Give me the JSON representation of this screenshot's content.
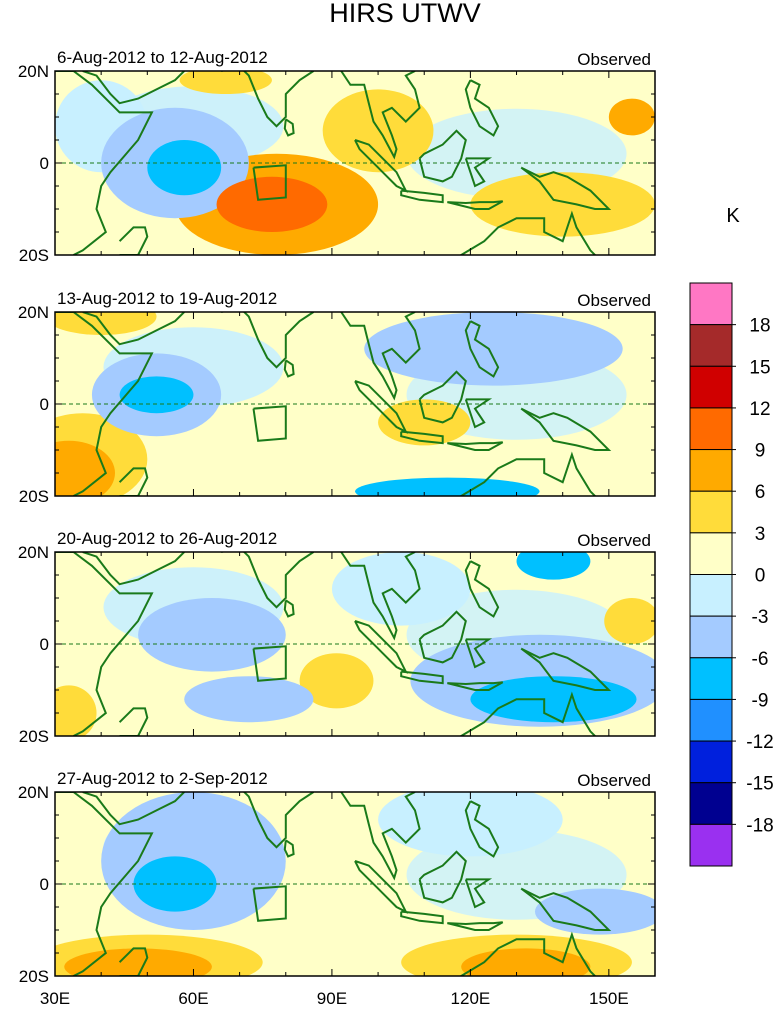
{
  "chart_data": {
    "type": "heatmap",
    "title": "HIRS UTWV",
    "unit_label": "K",
    "x_ticks": [
      "30E",
      "60E",
      "90E",
      "120E",
      "150E"
    ],
    "x_range": [
      30,
      160
    ],
    "y_ticks": [
      "20N",
      "0",
      "20S"
    ],
    "y_range": [
      -20,
      20
    ],
    "colorbar": {
      "labels": [
        "18",
        "15",
        "12",
        "9",
        "6",
        "3",
        "0",
        "-3",
        "-6",
        "-9",
        "-12",
        "-15",
        "-18"
      ],
      "colors": [
        "#ff77c4",
        "#a52a2a",
        "#d00000",
        "#ff6a00",
        "#ffaa00",
        "#ffdc3a",
        "#ffffc8",
        "#c8f0ff",
        "#a4cbff",
        "#00c0ff",
        "#2090ff",
        "#0020dd",
        "#000090",
        "#9a30f0"
      ]
    },
    "panels": [
      {
        "period": "6-Aug-2012 to 12-Aug-2012",
        "label": "Observed",
        "blobs": [
          {
            "lon": 58,
            "lat": -1,
            "rx": 8,
            "ry": 6,
            "value": -9
          },
          {
            "lon": 56,
            "lat": 0,
            "rx": 16,
            "ry": 12,
            "value": -6
          },
          {
            "lon": 78,
            "lat": -9,
            "rx": 22,
            "ry": 11,
            "value": 6
          },
          {
            "lon": 77,
            "lat": -9,
            "rx": 12,
            "ry": 6,
            "value": 9
          },
          {
            "lon": 100,
            "lat": 7,
            "rx": 12,
            "ry": 9,
            "value": 3
          },
          {
            "lon": 67,
            "lat": 18,
            "rx": 10,
            "ry": 3,
            "value": 3
          },
          {
            "lon": 140,
            "lat": -9,
            "rx": 20,
            "ry": 7,
            "value": 3
          },
          {
            "lon": 155,
            "lat": 10,
            "rx": 5,
            "ry": 4,
            "value": 6
          },
          {
            "lon": 40,
            "lat": 8,
            "rx": 10,
            "ry": 10,
            "value": -3
          }
        ]
      },
      {
        "period": "13-Aug-2012 to 19-Aug-2012",
        "label": "Observed",
        "blobs": [
          {
            "lon": 52,
            "lat": 2,
            "rx": 8,
            "ry": 4,
            "value": -9
          },
          {
            "lon": 52,
            "lat": 2,
            "rx": 14,
            "ry": 9,
            "value": -6
          },
          {
            "lon": 33,
            "lat": -15,
            "rx": 10,
            "ry": 7,
            "value": 6
          },
          {
            "lon": 36,
            "lat": -12,
            "rx": 14,
            "ry": 10,
            "value": 3
          },
          {
            "lon": 110,
            "lat": -4,
            "rx": 10,
            "ry": 5,
            "value": 3
          },
          {
            "lon": 125,
            "lat": 12,
            "rx": 28,
            "ry": 8,
            "value": -6
          },
          {
            "lon": 115,
            "lat": -19,
            "rx": 20,
            "ry": 3,
            "value": -9
          },
          {
            "lon": 40,
            "lat": 19,
            "rx": 12,
            "ry": 4,
            "value": 3
          }
        ]
      },
      {
        "period": "20-Aug-2012 to 26-Aug-2012",
        "label": "Observed",
        "blobs": [
          {
            "lon": 138,
            "lat": -12,
            "rx": 18,
            "ry": 5,
            "value": -9
          },
          {
            "lon": 135,
            "lat": -8,
            "rx": 28,
            "ry": 10,
            "value": -6
          },
          {
            "lon": 72,
            "lat": -12,
            "rx": 14,
            "ry": 5,
            "value": -6
          },
          {
            "lon": 64,
            "lat": 2,
            "rx": 16,
            "ry": 8,
            "value": -6
          },
          {
            "lon": 91,
            "lat": -8,
            "rx": 8,
            "ry": 6,
            "value": 3
          },
          {
            "lon": 33,
            "lat": -15,
            "rx": 6,
            "ry": 6,
            "value": 3
          },
          {
            "lon": 155,
            "lat": 5,
            "rx": 6,
            "ry": 5,
            "value": 3
          },
          {
            "lon": 138,
            "lat": 18,
            "rx": 8,
            "ry": 4,
            "value": -9
          },
          {
            "lon": 105,
            "lat": 12,
            "rx": 15,
            "ry": 8,
            "value": -3
          }
        ]
      },
      {
        "period": "27-Aug-2012 to 2-Sep-2012",
        "label": "Observed",
        "blobs": [
          {
            "lon": 56,
            "lat": 0,
            "rx": 9,
            "ry": 6,
            "value": -9
          },
          {
            "lon": 60,
            "lat": 5,
            "rx": 20,
            "ry": 15,
            "value": -6
          },
          {
            "lon": 50,
            "lat": -17,
            "rx": 25,
            "ry": 6,
            "value": 3
          },
          {
            "lon": 48,
            "lat": -18,
            "rx": 16,
            "ry": 4,
            "value": 6
          },
          {
            "lon": 130,
            "lat": -17,
            "rx": 25,
            "ry": 6,
            "value": 3
          },
          {
            "lon": 132,
            "lat": -18,
            "rx": 14,
            "ry": 4,
            "value": 6
          },
          {
            "lon": 148,
            "lat": -6,
            "rx": 14,
            "ry": 5,
            "value": -6
          },
          {
            "lon": 120,
            "lat": 14,
            "rx": 20,
            "ry": 8,
            "value": -3
          }
        ]
      }
    ]
  }
}
